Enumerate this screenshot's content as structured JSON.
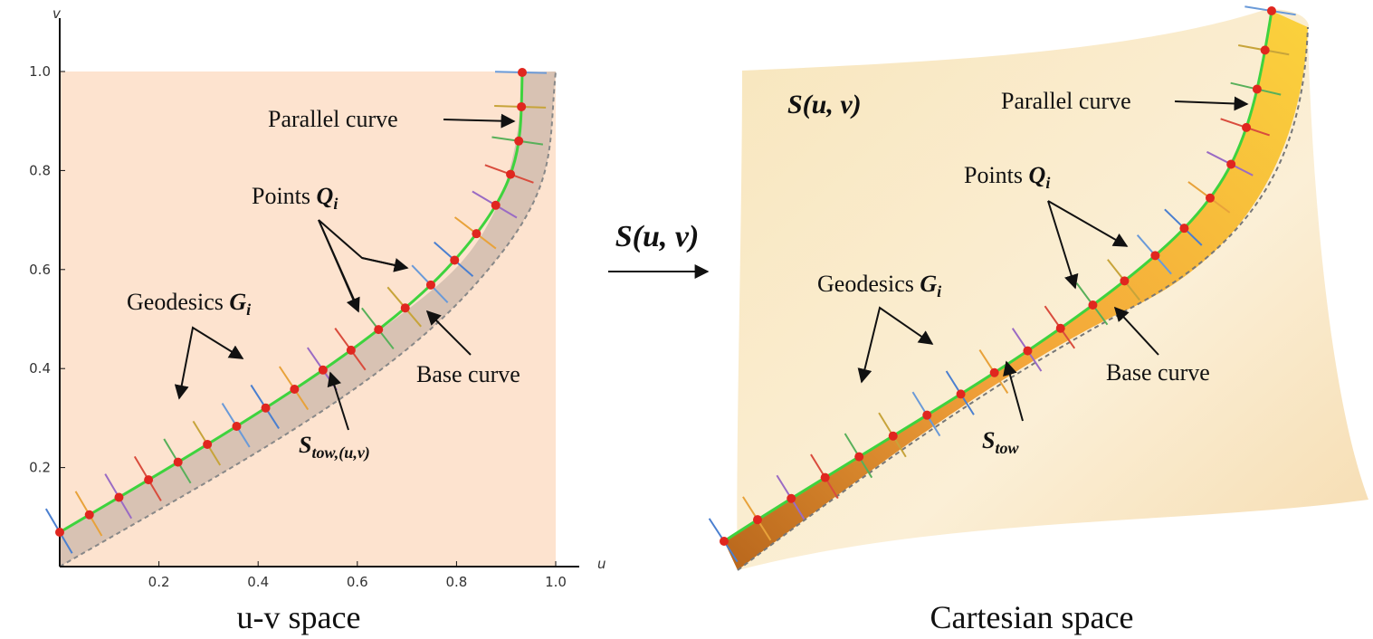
{
  "left_panel": {
    "axis_labels": {
      "u": "u",
      "v": "v"
    },
    "x_ticks": [
      "0.2",
      "0.4",
      "0.6",
      "0.8",
      "1.0"
    ],
    "y_ticks": [
      "0.2",
      "0.4",
      "0.6",
      "0.8",
      "1.0"
    ],
    "parallel_curve": "Parallel curve",
    "points": {
      "text": "Points",
      "symbol": "Q",
      "subscript": "i"
    },
    "geodesics": {
      "text": "Geodesics",
      "symbol": "G",
      "subscript": "i"
    },
    "base_curve": "Base curve",
    "tow": {
      "symbol": "S",
      "subscript": "tow,(u,v)"
    },
    "caption": "u-v space"
  },
  "mapping": {
    "label": "S(u, v)"
  },
  "right_panel": {
    "surface_label": "S(u, v)",
    "parallel_curve": "Parallel curve",
    "points": {
      "text": "Points",
      "symbol": "Q",
      "subscript": "i"
    },
    "geodesics": {
      "text": "Geodesics",
      "symbol": "G",
      "subscript": "i"
    },
    "base_curve": "Base curve",
    "tow": {
      "symbol": "S",
      "subscript": "tow"
    },
    "caption": "Cartesian space"
  }
}
